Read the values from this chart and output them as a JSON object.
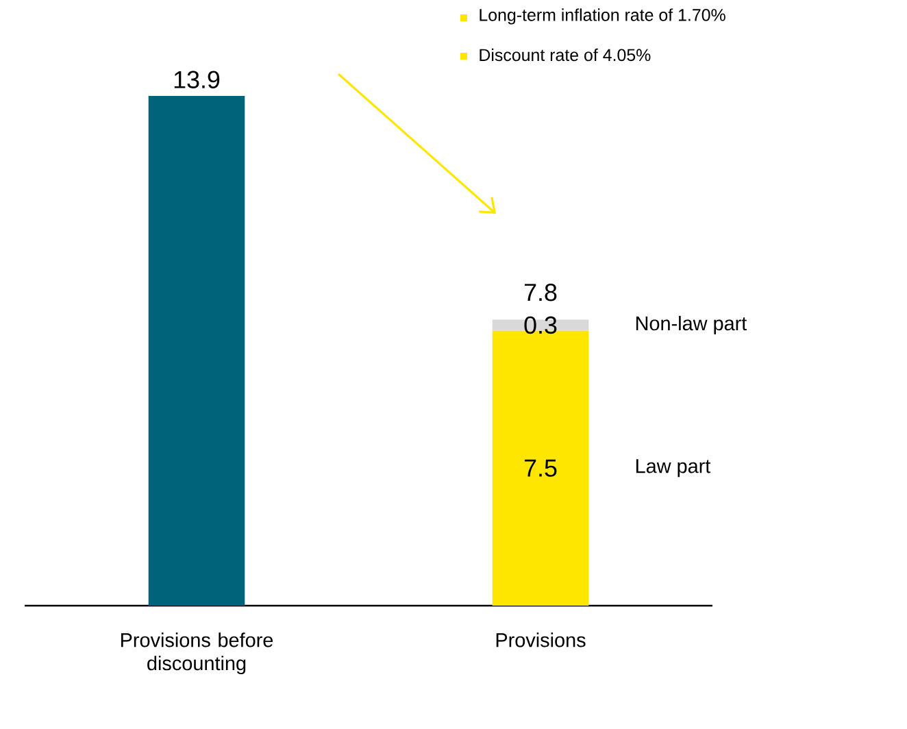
{
  "chart_data": {
    "type": "bar",
    "stacked": true,
    "categories": [
      "Provisions before discounting",
      "Provisions"
    ],
    "series": [
      {
        "color": "#00637a",
        "values": [
          13.9,
          null
        ]
      },
      {
        "name": "Law part",
        "color": "#ffe600",
        "values": [
          null,
          7.5
        ]
      },
      {
        "name": "Non-law part",
        "color": "#d9d9d9",
        "values": [
          null,
          0.3
        ]
      }
    ],
    "data_labels": true,
    "totals": [
      null,
      "7.8"
    ],
    "tick_labels": "x",
    "annotations": [
      "Long-term inflation rate of 1.70%",
      "Discount rate of 4.05%"
    ]
  }
}
